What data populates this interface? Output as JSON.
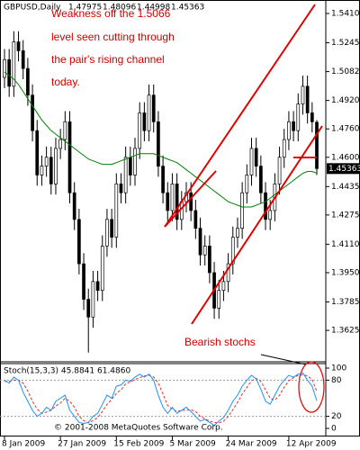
{
  "chart_data": {
    "type": "candlestick",
    "symbol": "GBPUSD,Daily",
    "open": [
      1.505,
      1.515,
      1.5,
      1.525,
      1.52,
      1.51,
      1.495,
      1.475,
      1.45,
      1.455,
      1.46,
      1.445,
      1.465,
      1.47,
      1.48,
      1.44,
      1.425,
      1.4,
      1.38,
      1.37,
      1.39,
      1.385,
      1.41,
      1.425,
      1.415,
      1.445,
      1.44,
      1.46,
      1.45,
      1.465,
      1.485,
      1.475,
      1.495,
      1.48,
      1.455,
      1.44,
      1.43,
      1.445,
      1.425,
      1.435,
      1.44,
      1.43,
      1.42,
      1.405,
      1.41,
      1.395,
      1.375,
      1.385,
      1.39,
      1.4,
      1.415,
      1.42,
      1.44,
      1.45,
      1.465,
      1.455,
      1.44,
      1.425,
      1.43,
      1.445,
      1.46,
      1.47,
      1.48,
      1.475,
      1.49,
      1.5,
      1.485,
      1.47975
    ],
    "high": [
      1.521,
      1.521,
      1.531,
      1.531,
      1.526,
      1.516,
      1.501,
      1.481,
      1.461,
      1.466,
      1.466,
      1.471,
      1.476,
      1.486,
      1.486,
      1.446,
      1.431,
      1.406,
      1.386,
      1.396,
      1.396,
      1.416,
      1.431,
      1.431,
      1.451,
      1.451,
      1.466,
      1.466,
      1.471,
      1.491,
      1.491,
      1.501,
      1.501,
      1.486,
      1.461,
      1.446,
      1.451,
      1.451,
      1.441,
      1.446,
      1.446,
      1.436,
      1.426,
      1.416,
      1.416,
      1.401,
      1.391,
      1.396,
      1.406,
      1.421,
      1.426,
      1.446,
      1.456,
      1.471,
      1.471,
      1.461,
      1.446,
      1.436,
      1.451,
      1.466,
      1.476,
      1.486,
      1.486,
      1.496,
      1.506,
      1.506,
      1.491,
      1.48096
    ],
    "low": [
      1.499,
      1.494,
      1.494,
      1.514,
      1.504,
      1.489,
      1.469,
      1.444,
      1.444,
      1.449,
      1.439,
      1.439,
      1.459,
      1.464,
      1.434,
      1.419,
      1.394,
      1.374,
      1.35,
      1.364,
      1.379,
      1.379,
      1.404,
      1.409,
      1.409,
      1.434,
      1.434,
      1.444,
      1.444,
      1.459,
      1.469,
      1.469,
      1.474,
      1.449,
      1.434,
      1.424,
      1.424,
      1.419,
      1.419,
      1.429,
      1.424,
      1.414,
      1.399,
      1.399,
      1.389,
      1.369,
      1.369,
      1.379,
      1.384,
      1.394,
      1.409,
      1.414,
      1.434,
      1.444,
      1.449,
      1.434,
      1.419,
      1.419,
      1.424,
      1.439,
      1.454,
      1.464,
      1.469,
      1.469,
      1.484,
      1.479,
      1.474,
      1.44998
    ],
    "close": [
      1.515,
      1.5,
      1.525,
      1.52,
      1.51,
      1.495,
      1.475,
      1.45,
      1.455,
      1.46,
      1.445,
      1.465,
      1.47,
      1.48,
      1.44,
      1.425,
      1.4,
      1.38,
      1.37,
      1.39,
      1.385,
      1.41,
      1.425,
      1.415,
      1.445,
      1.44,
      1.46,
      1.45,
      1.465,
      1.485,
      1.475,
      1.495,
      1.48,
      1.455,
      1.44,
      1.43,
      1.445,
      1.425,
      1.435,
      1.44,
      1.43,
      1.42,
      1.405,
      1.41,
      1.395,
      1.375,
      1.385,
      1.39,
      1.4,
      1.415,
      1.42,
      1.44,
      1.45,
      1.465,
      1.455,
      1.44,
      1.425,
      1.43,
      1.445,
      1.46,
      1.47,
      1.48,
      1.475,
      1.49,
      1.5,
      1.485,
      1.48,
      1.45363
    ],
    "ma": {
      "color": "#008000",
      "values": [
        1.508,
        1.506,
        1.504,
        1.501,
        1.497,
        1.493,
        1.489,
        1.485,
        1.481,
        1.478,
        1.475,
        1.473,
        1.471,
        1.469,
        1.467,
        1.465,
        1.463,
        1.461,
        1.459,
        1.458,
        1.457,
        1.456,
        1.456,
        1.456,
        1.457,
        1.458,
        1.459,
        1.46,
        1.461,
        1.462,
        1.462,
        1.462,
        1.462,
        1.461,
        1.46,
        1.459,
        1.458,
        1.457,
        1.455,
        1.453,
        1.451,
        1.449,
        1.447,
        1.445,
        1.443,
        1.441,
        1.439,
        1.437,
        1.435,
        1.434,
        1.433,
        1.432,
        1.432,
        1.432,
        1.433,
        1.434,
        1.435,
        1.437,
        1.439,
        1.441,
        1.443,
        1.445,
        1.447,
        1.449,
        1.451,
        1.452,
        1.452,
        1.451
      ]
    },
    "ylim": [
      1.3458,
      1.5486
    ],
    "yticks": [
      {
        "value": 1.541,
        "label": "1.54100"
      },
      {
        "value": 1.5245,
        "label": "1.52450"
      },
      {
        "value": 1.50825,
        "label": "1.50825"
      },
      {
        "value": 1.492,
        "label": "1.49200"
      },
      {
        "value": 1.476,
        "label": "1.47600"
      },
      {
        "value": 1.46,
        "label": "1.46000"
      },
      {
        "value": 1.4435,
        "label": "1.44350"
      },
      {
        "value": 1.4275,
        "label": "1.42750"
      },
      {
        "value": 1.411,
        "label": "1.41100"
      },
      {
        "value": 1.395,
        "label": "1.39500"
      },
      {
        "value": 1.3785,
        "label": "1.37850"
      },
      {
        "value": 1.3625,
        "label": "1.36250"
      }
    ],
    "xticks": [
      {
        "value": 0,
        "label": "8 Jan 2009"
      },
      {
        "value": 12,
        "label": "27 Jan 2009"
      },
      {
        "value": 24,
        "label": "15 Feb 2009"
      },
      {
        "value": 36,
        "label": "5 Mar 2009"
      },
      {
        "value": 48,
        "label": "24 Mar 2009"
      },
      {
        "value": 61,
        "label": "12 Apr 2009"
      }
    ],
    "annotation": [
      "Weakness off the 1.5066",
      "level seen cutting through",
      "the pair's rising channel",
      "today."
    ],
    "stoch_note": "Bearish stochs",
    "stoch": {
      "label": "Stoch(15,3,3) 45.8841 61.4860",
      "ylim": [
        0,
        100
      ],
      "yticks": [
        100,
        80,
        20,
        0
      ],
      "main": {
        "color": "#1e90ff",
        "values": [
          80,
          75,
          85,
          80,
          60,
          45,
          30,
          20,
          25,
          35,
          30,
          45,
          50,
          55,
          30,
          20,
          10,
          8,
          10,
          20,
          25,
          40,
          55,
          50,
          70,
          72,
          80,
          78,
          85,
          90,
          85,
          90,
          80,
          55,
          35,
          25,
          35,
          25,
          30,
          35,
          28,
          20,
          12,
          15,
          10,
          5,
          12,
          18,
          30,
          45,
          55,
          70,
          80,
          88,
          82,
          65,
          45,
          40,
          55,
          70,
          80,
          88,
          85,
          90,
          92,
          80,
          70,
          45.8841
        ]
      },
      "signal": {
        "color": "#e03030",
        "values": [
          78,
          78,
          80,
          80,
          75,
          62,
          45,
          32,
          25,
          27,
          30,
          37,
          42,
          50,
          45,
          35,
          20,
          13,
          9,
          13,
          18,
          28,
          40,
          48,
          58,
          64,
          74,
          77,
          81,
          84,
          87,
          88,
          85,
          75,
          57,
          38,
          32,
          28,
          30,
          30,
          31,
          28,
          20,
          16,
          12,
          10,
          9,
          12,
          20,
          31,
          43,
          57,
          68,
          79,
          83,
          78,
          64,
          50,
          47,
          55,
          68,
          79,
          84,
          88,
          89,
          87,
          81,
          61.486
        ]
      }
    },
    "copyright": "© 2001-2008 MetaQuotes Software Corp."
  }
}
